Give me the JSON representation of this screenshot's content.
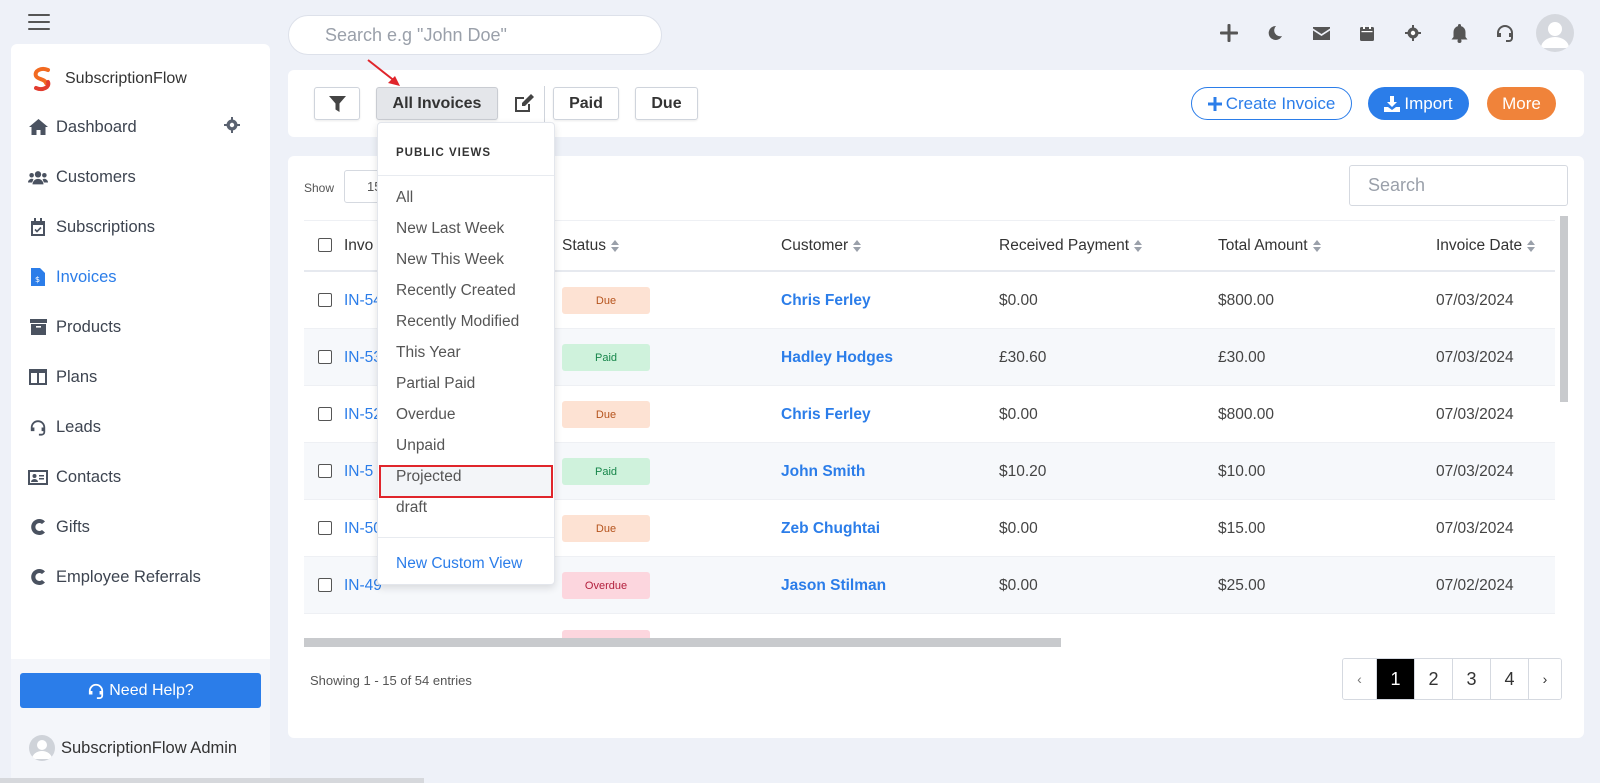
{
  "search": {
    "placeholder": "Search e.g \"John Doe\""
  },
  "brand": {
    "name": "SubscriptionFlow"
  },
  "sidebar": {
    "items": [
      {
        "label": "Dashboard",
        "icon": "home-icon"
      },
      {
        "label": "Customers",
        "icon": "users-icon"
      },
      {
        "label": "Subscriptions",
        "icon": "calendar-check-icon"
      },
      {
        "label": "Invoices",
        "icon": "invoice-icon",
        "active": true
      },
      {
        "label": "Products",
        "icon": "archive-icon"
      },
      {
        "label": "Plans",
        "icon": "columns-icon"
      },
      {
        "label": "Leads",
        "icon": "headset-icon"
      },
      {
        "label": "Contacts",
        "icon": "id-card-icon"
      },
      {
        "label": "Gifts",
        "icon": "c-logo-icon"
      },
      {
        "label": "Employee Referrals",
        "icon": "c-logo-icon"
      }
    ],
    "help_label": "Need Help?",
    "admin_name": "SubscriptionFlow Admin"
  },
  "toolbar": {
    "all_invoices_label": "All Invoices",
    "paid_label": "Paid",
    "due_label": "Due",
    "create_label": "Create Invoice",
    "import_label": "Import",
    "more_label": "More"
  },
  "table": {
    "show_label": "Show",
    "show_value": "15",
    "search_placeholder": "Search",
    "headers": [
      "Invo",
      "Status",
      "Customer",
      "Received Payment",
      "Total Amount",
      "Invoice Date"
    ],
    "rows": [
      {
        "invoice": "IN-54",
        "status": "Due",
        "customer": "Chris Ferley",
        "received": "$0.00",
        "total": "$800.00",
        "date": "07/03/2024"
      },
      {
        "invoice": "IN-53",
        "status": "Paid",
        "customer": "Hadley Hodges",
        "received": "£30.60",
        "total": "£30.00",
        "date": "07/03/2024"
      },
      {
        "invoice": "IN-52",
        "status": "Due",
        "customer": "Chris Ferley",
        "received": "$0.00",
        "total": "$800.00",
        "date": "07/03/2024"
      },
      {
        "invoice": "IN-5",
        "status": "Paid",
        "customer": "John Smith",
        "received": "$10.20",
        "total": "$10.00",
        "date": "07/03/2024"
      },
      {
        "invoice": "IN-50",
        "status": "Due",
        "customer": "Zeb Chughtai",
        "received": "$0.00",
        "total": "$15.00",
        "date": "07/03/2024"
      },
      {
        "invoice": "IN-49",
        "status": "Overdue",
        "customer": "Jason Stilman",
        "received": "$0.00",
        "total": "$25.00",
        "date": "07/02/2024"
      }
    ],
    "entries_text": "Showing 1 - 15 of 54 entries",
    "pages": [
      "‹",
      "1",
      "2",
      "3",
      "4",
      "›"
    ],
    "current_page": "1"
  },
  "dropdown": {
    "heading": "PUBLIC VIEWS",
    "items": [
      "All",
      "New Last Week",
      "New This Week",
      "Recently Created",
      "Recently Modified",
      "This Year",
      "Partial Paid",
      "Overdue",
      "Unpaid",
      "Projected",
      "draft"
    ],
    "highlighted": "Projected",
    "new_view_label": "New Custom View"
  },
  "colors": {
    "accent": "#2b7de9",
    "more": "#f0833a",
    "highlight_border": "#e0252b"
  }
}
